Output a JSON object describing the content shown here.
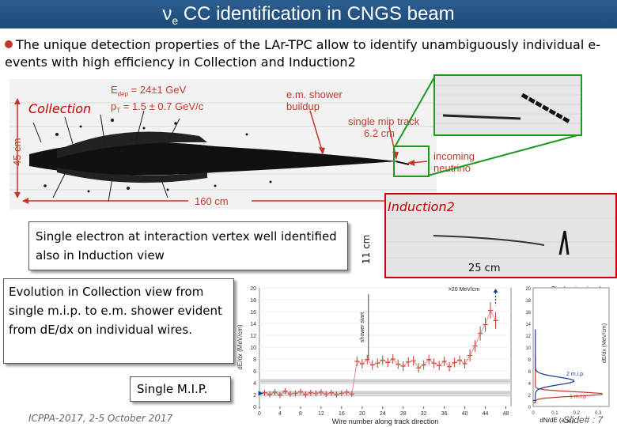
{
  "slide": {
    "title_prefix": "ν",
    "title_sub": "e",
    "title_rest": " CC identification in CNGS beam",
    "bullet": "The unique detection properties of the LAr-TPC allow to identify unambiguously individual e-events with high efficiency in Collection and Induction2",
    "footer_left": "ICPPA-2017, 2-5 October 2017",
    "footer_right": "Slide# : 7"
  },
  "event_display": {
    "collection_label": "Collection",
    "energy_line1": "E",
    "energy_sub": "dep",
    "energy_line1_value": "= 24±1 GeV",
    "pt_line": "p",
    "pt_sub": "T",
    "pt_value": "= 1.5 ± 0.7 GeV/c",
    "em_shower": "e.m. shower",
    "buildup": "buildup",
    "single_mip": "single mip track",
    "mip_length": "6.2 cm",
    "incoming": "incoming",
    "neutrino": "neutrino",
    "height_label": "45 cm",
    "width_label": "160 cm"
  },
  "induction": {
    "label": "Induction2",
    "scale_25": "25 cm",
    "scale_11": "11 cm"
  },
  "callouts": {
    "box1": "Single electron at interaction vertex well identified also in Induction view",
    "box2": "Evolution in Collection view from single m.i.p. to e.m. shower evident from dE/dx on individual wires.",
    "box3": "Single M.I.P."
  },
  "plot": {
    "ylabel": "dE/dx (MeV/cm)",
    "xlabel": "Wire number along track direction",
    "top_note": ">20 MeV/cm",
    "shower_start": "shower start",
    "single_wire_signal": "Single wire signal",
    "mip2": "2 m.i.p.",
    "mip1": "1 m.i.p.",
    "hist_xlabel": "dN/dE (a.u.)",
    "y_ticks": [
      "0",
      "2",
      "4",
      "6",
      "8",
      "10",
      "12",
      "14",
      "16",
      "18",
      "20"
    ],
    "x_ticks": [
      "0",
      "4",
      "8",
      "12",
      "16",
      "20",
      "24",
      "28",
      "32",
      "36",
      "40",
      "44",
      "48"
    ],
    "hist_y_ticks": [
      "0",
      "2",
      "4",
      "6",
      "8",
      "10",
      "12",
      "14",
      "16",
      "18",
      "20"
    ],
    "hist_x_ticks": [
      "0",
      "0.1",
      "0.2",
      "0.3"
    ]
  },
  "chart_data": {
    "type": "scatter",
    "title": "",
    "xlabel": "Wire number along track direction",
    "ylabel": "dE/dx (MeV/cm)",
    "xlim": [
      0,
      49
    ],
    "ylim": [
      0,
      20
    ],
    "x": [
      1,
      2,
      3,
      4,
      5,
      6,
      7,
      8,
      9,
      10,
      11,
      12,
      13,
      14,
      15,
      16,
      17,
      18,
      19,
      20,
      21,
      22,
      23,
      24,
      25,
      26,
      27,
      28,
      29,
      30,
      31,
      32,
      33,
      34,
      35,
      36,
      37,
      38,
      39,
      40,
      41,
      42,
      43,
      44,
      45,
      46
    ],
    "y": [
      2.3,
      2.0,
      2.4,
      1.9,
      2.6,
      2.1,
      2.2,
      2.5,
      2.0,
      2.3,
      2.2,
      2.4,
      2.1,
      2.3,
      2.0,
      2.2,
      2.4,
      2.1,
      7.6,
      7.2,
      7.9,
      7.0,
      7.3,
      7.8,
      7.4,
      8.0,
      7.1,
      6.8,
      7.5,
      7.7,
      6.5,
      7.0,
      7.9,
      7.3,
      6.9,
      7.6,
      6.7,
      7.4,
      7.8,
      7.2,
      8.6,
      10.2,
      12.3,
      13.8,
      16.2,
      14.5
    ],
    "errors": [
      0.5,
      0.5,
      0.5,
      0.5,
      0.5,
      0.5,
      0.5,
      0.5,
      0.5,
      0.5,
      0.5,
      0.5,
      0.5,
      0.5,
      0.5,
      0.5,
      0.5,
      0.5,
      0.8,
      0.8,
      0.8,
      0.8,
      0.8,
      0.8,
      0.8,
      0.8,
      0.8,
      0.8,
      0.8,
      0.8,
      0.8,
      0.8,
      0.8,
      0.8,
      0.8,
      0.8,
      0.8,
      0.8,
      0.8,
      0.8,
      1.0,
      1.0,
      1.2,
      1.2,
      1.4,
      1.4
    ],
    "shower_start_x": 20,
    "top_arrow_x": 46
  },
  "colors": {
    "title_bg": "#1d4a78",
    "accent_red": "#c00000",
    "box_green": "#1f9a1f",
    "points": "#c0392b"
  }
}
